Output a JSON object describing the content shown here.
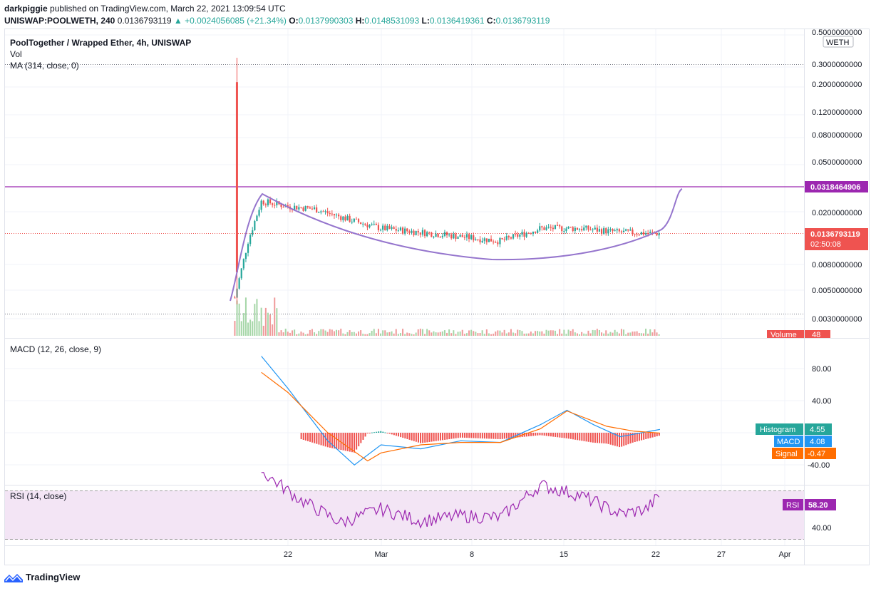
{
  "header": {
    "author": "darkpiggie",
    "published": "published on TradingView.com, March 22, 2021 13:09:54 UTC"
  },
  "quote": {
    "symbol": "UNISWAP:POOLWETH, 240",
    "last": "0.0136793119",
    "change": "+0.0024056085 (+21.34%)",
    "o_label": "O:",
    "o": "0.0137990303",
    "h_label": "H:",
    "h": "0.0148531093",
    "l_label": "L:",
    "l": "0.0136419361",
    "c_label": "C:",
    "c": "0.0136793119"
  },
  "legends": {
    "main_title": "PoolTogether / Wrapped Ether, 4h, UNISWAP",
    "vol": "Vol",
    "ma": "MA (314, close, 0)",
    "macd": "MACD (12, 26, close, 9)",
    "rsi": "RSI (14, close)"
  },
  "price_axis": {
    "currency": "WETH",
    "ticks": [
      "0.5000000000",
      "0.3000000000",
      "0.2000000000",
      "0.1200000000",
      "0.0800000000",
      "0.0500000000",
      "0.0200000000",
      "0.0080000000",
      "0.0050000000",
      "0.0030000000"
    ],
    "resistance_label": "0.0318464906",
    "last_label": "0.0136793119",
    "countdown": "02:50:08",
    "volume_label": "Volume",
    "volume_value": "48"
  },
  "macd_axis": {
    "ticks": [
      "80.00",
      "40.00",
      "-40.00"
    ],
    "histogram_label": "Histogram",
    "histogram_value": "4.55",
    "macd_label": "MACD",
    "macd_value": "4.08",
    "signal_label": "Signal",
    "signal_value": "-0.47"
  },
  "rsi_axis": {
    "ticks": [
      "40.00"
    ],
    "rsi_label": "RSI",
    "rsi_value": "58.20"
  },
  "time_axis": {
    "ticks": [
      "22",
      "Mar",
      "8",
      "15",
      "22",
      "27",
      "Apr"
    ]
  },
  "colors": {
    "up": "#26a69a",
    "down": "#ef5350",
    "resistance": "#9c27b0",
    "curve": "#9575cd",
    "macd": "#2196f3",
    "signal": "#ff6d00",
    "rsi": "#9c27b0",
    "rsi_band": "#f3e5f5"
  },
  "footer": {
    "brand": "TradingView",
    "logo_icon": "tradingview-logo-icon"
  },
  "chart_data": [
    {
      "type": "candlestick",
      "title": "PoolTogether / Wrapped Ether, 4h, UNISWAP",
      "scale": "log",
      "ylim": [
        0.0025,
        0.5
      ],
      "x_ticks": [
        "22",
        "Mar",
        "8",
        "15",
        "22",
        "27",
        "Apr"
      ],
      "approx_close_path": [
        {
          "date": "2021-02-18",
          "value": 0.0045
        },
        {
          "date": "2021-02-19",
          "value": 0.012
        },
        {
          "date": "2021-02-20",
          "value": 0.024
        },
        {
          "date": "2021-02-22",
          "value": 0.022
        },
        {
          "date": "2021-02-24",
          "value": 0.021
        },
        {
          "date": "2021-02-27",
          "value": 0.017
        },
        {
          "date": "2021-03-01",
          "value": 0.015
        },
        {
          "date": "2021-03-04",
          "value": 0.014
        },
        {
          "date": "2021-03-07",
          "value": 0.013
        },
        {
          "date": "2021-03-10",
          "value": 0.012
        },
        {
          "date": "2021-03-13",
          "value": 0.015
        },
        {
          "date": "2021-03-16",
          "value": 0.015
        },
        {
          "date": "2021-03-19",
          "value": 0.014
        },
        {
          "date": "2021-03-22",
          "value": 0.0137
        }
      ],
      "spike_high": 0.29,
      "resistance_level": 0.0318464906,
      "last_price": 0.0136793119
    },
    {
      "type": "line",
      "title": "MACD (12, 26, close, 9)",
      "ylim": [
        -50,
        100
      ],
      "series": [
        {
          "name": "MACD",
          "values": [
            {
              "date": "2021-02-20",
              "value": 95
            },
            {
              "date": "2021-02-22",
              "value": 55
            },
            {
              "date": "2021-02-25",
              "value": -10
            },
            {
              "date": "2021-02-27",
              "value": -40
            },
            {
              "date": "2021-03-01",
              "value": -15
            },
            {
              "date": "2021-03-04",
              "value": -20
            },
            {
              "date": "2021-03-07",
              "value": -10
            },
            {
              "date": "2021-03-10",
              "value": -12
            },
            {
              "date": "2021-03-13",
              "value": 10
            },
            {
              "date": "2021-03-15",
              "value": 28
            },
            {
              "date": "2021-03-17",
              "value": 10
            },
            {
              "date": "2021-03-19",
              "value": -5
            },
            {
              "date": "2021-03-22",
              "value": 4.08
            }
          ]
        },
        {
          "name": "Signal",
          "values": [
            {
              "date": "2021-02-20",
              "value": 75
            },
            {
              "date": "2021-02-22",
              "value": 50
            },
            {
              "date": "2021-02-25",
              "value": 0
            },
            {
              "date": "2021-02-28",
              "value": -35
            },
            {
              "date": "2021-03-01",
              "value": -25
            },
            {
              "date": "2021-03-04",
              "value": -15
            },
            {
              "date": "2021-03-07",
              "value": -12
            },
            {
              "date": "2021-03-10",
              "value": -12
            },
            {
              "date": "2021-03-13",
              "value": 5
            },
            {
              "date": "2021-03-15",
              "value": 27
            },
            {
              "date": "2021-03-18",
              "value": 8
            },
            {
              "date": "2021-03-20",
              "value": 2
            },
            {
              "date": "2021-03-22",
              "value": -0.47
            }
          ]
        }
      ],
      "histogram_last": 4.55
    },
    {
      "type": "line",
      "title": "RSI (14, close)",
      "ylim": [
        30,
        75
      ],
      "series": [
        {
          "name": "RSI",
          "values": [
            {
              "date": "2021-02-20",
              "value": 72
            },
            {
              "date": "2021-02-23",
              "value": 55
            },
            {
              "date": "2021-02-26",
              "value": 42
            },
            {
              "date": "2021-03-01",
              "value": 50
            },
            {
              "date": "2021-03-04",
              "value": 43
            },
            {
              "date": "2021-03-07",
              "value": 46
            },
            {
              "date": "2021-03-10",
              "value": 45
            },
            {
              "date": "2021-03-13",
              "value": 64
            },
            {
              "date": "2021-03-16",
              "value": 58
            },
            {
              "date": "2021-03-19",
              "value": 47
            },
            {
              "date": "2021-03-21",
              "value": 50
            },
            {
              "date": "2021-03-22",
              "value": 58.2
            }
          ]
        }
      ]
    }
  ]
}
